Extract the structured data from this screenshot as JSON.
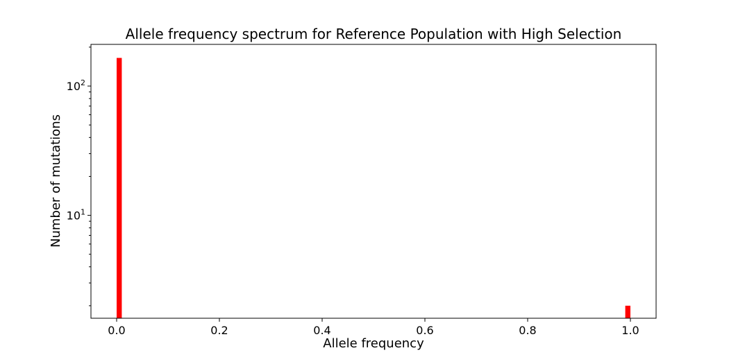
{
  "chart_data": {
    "type": "bar",
    "title": "Allele frequency spectrum for Reference Population with High Selection",
    "xlabel": "Allele frequency",
    "ylabel": "Number of mutations",
    "x_scale": "linear",
    "y_scale": "log",
    "xlim": [
      -0.05,
      1.05
    ],
    "ylim": [
      1.6,
      210
    ],
    "x_ticks": [
      0.0,
      0.2,
      0.4,
      0.6,
      0.8,
      1.0
    ],
    "x_tick_labels": [
      "0.0",
      "0.2",
      "0.4",
      "0.6",
      "0.8",
      "1.0"
    ],
    "y_ticks": [
      {
        "value": 10,
        "base": "10",
        "exp": "1"
      },
      {
        "value": 100,
        "base": "10",
        "exp": "2"
      }
    ],
    "bar_color": "#ff0000",
    "bin_width": 0.01,
    "grid": false,
    "legend": "none",
    "bars": [
      {
        "x": 0.0,
        "value": 165
      },
      {
        "x": 0.99,
        "value": 2
      }
    ]
  }
}
